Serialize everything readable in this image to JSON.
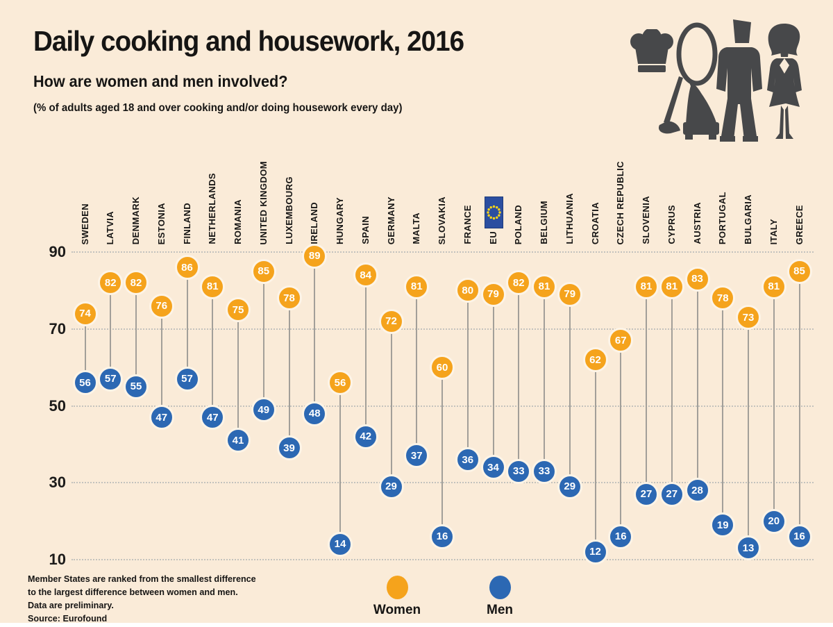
{
  "header": {
    "title": "Daily cooking and housework, 2016",
    "subtitle": "How are women and men involved?",
    "note": "(% of adults aged 18 and over cooking and/or doing housework every day)"
  },
  "colors": {
    "women": "#F5A31C",
    "men": "#2C68B3",
    "background": "#FAEBD8",
    "icon_gray": "#47484A",
    "eu_flag_blue": "#2B4EA0",
    "eu_flag_star_yellow": "#FFD617"
  },
  "icons": [
    "chef-hat-icon",
    "vacuum-cleaner-icon",
    "man-icon",
    "woman-icon"
  ],
  "legend": {
    "women_label": "Women",
    "men_label": "Men"
  },
  "footnote": {
    "lines": [
      "Member States are ranked from the smallest difference",
      "to the largest difference between women and men.",
      "Data are preliminary.",
      "Source: Eurofound"
    ]
  },
  "chart_data": {
    "type": "dumbbell-dot",
    "title": "Daily cooking and housework, 2016",
    "categories": [
      "SWEDEN",
      "LATVIA",
      "DENMARK",
      "ESTONIA",
      "FINLAND",
      "NETHERLANDS",
      "ROMANIA",
      "UNITED KINGDOM",
      "LUXEMBOURG",
      "IRELAND",
      "HUNGARY",
      "SPAIN",
      "GERMANY",
      "MALTA",
      "SLOVAKIA",
      "FRANCE",
      "EU",
      "POLAND",
      "BELGIUM",
      "LITHUANIA",
      "CROATIA",
      "CZECH REPUBLIC",
      "SLOVENIA",
      "CYPRUS",
      "AUSTRIA",
      "PORTUGAL",
      "BULGARIA",
      "ITALY",
      "GREECE"
    ],
    "series": [
      {
        "name": "Women",
        "values": [
          74,
          82,
          82,
          76,
          86,
          81,
          75,
          85,
          78,
          89,
          56,
          84,
          72,
          81,
          60,
          80,
          79,
          82,
          81,
          79,
          62,
          67,
          81,
          81,
          83,
          78,
          73,
          81,
          85
        ]
      },
      {
        "name": "Men",
        "values": [
          56,
          57,
          55,
          47,
          57,
          47,
          41,
          49,
          39,
          48,
          14,
          42,
          29,
          37,
          16,
          36,
          34,
          33,
          33,
          29,
          12,
          16,
          27,
          27,
          28,
          19,
          13,
          20,
          16
        ]
      }
    ],
    "yticks": [
      90,
      70,
      50,
      30,
      10
    ],
    "ylim": [
      10,
      90
    ],
    "grid": true,
    "legend_position": "bottom",
    "flag_category": "EU"
  }
}
